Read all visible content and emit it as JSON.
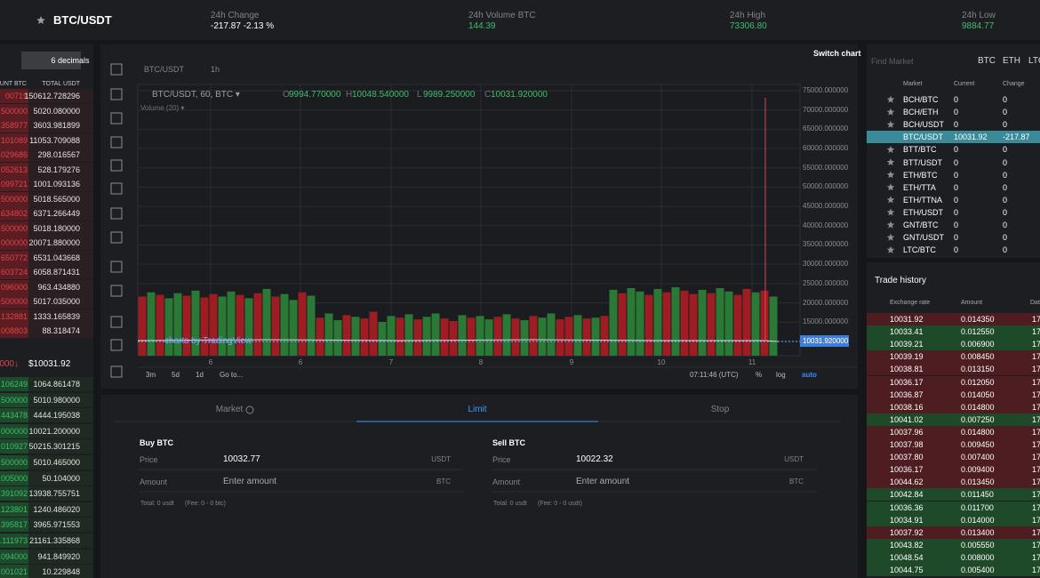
{
  "header": {
    "pair": "BTC/USDT",
    "stats": [
      {
        "label": "24h Change",
        "value": "-217.87 -2.13 %"
      },
      {
        "label": "24h Volume BTC",
        "value": "144.39"
      },
      {
        "label": "24h High",
        "value": "73306.80"
      },
      {
        "label": "24h Low",
        "value": "9884.77"
      }
    ]
  },
  "orderbook": {
    "decimals": "6 decimals",
    "columns": [
      "UNT BTC",
      "TOTAL USDT"
    ],
    "asks": [
      [
        "00719",
        "150612.728296"
      ],
      [
        ".500000",
        "5020.080000"
      ],
      [
        ".358977",
        "3603.981899"
      ],
      [
        ".101089",
        "11053.709088"
      ],
      [
        ".029686",
        "298.016567"
      ],
      [
        ".052613",
        "528.179276"
      ],
      [
        ".099721",
        "1001.093136"
      ],
      [
        ".500000",
        "5018.565000"
      ],
      [
        ".634802",
        "6371.266449"
      ],
      [
        ".500000",
        "5018.180000"
      ],
      [
        "000000",
        "20071.880000"
      ],
      [
        ".650772",
        "6531.043668"
      ],
      [
        ".603724",
        "6058.871431"
      ],
      [
        ".096000",
        "963.434880"
      ],
      [
        ".500000",
        "5017.035000"
      ],
      [
        ".132881",
        "1333.165839"
      ],
      [
        ".008803",
        "88.318474"
      ]
    ],
    "last": {
      "price": "000↓",
      "usd": "$10031.92"
    },
    "bids": [
      [
        ".106249",
        "1064.861478"
      ],
      [
        ".500000",
        "5010.980000"
      ],
      [
        ".443478",
        "4444.195038"
      ],
      [
        "000000",
        "10021.200000"
      ],
      [
        ".010927",
        "50215.301215"
      ],
      [
        ".500000",
        "5010.465000"
      ],
      [
        ".005000",
        "50.104000"
      ],
      [
        ".391092",
        "13938.755751"
      ],
      [
        ".123801",
        "1240.486020"
      ],
      [
        ".395817",
        "3965.971553"
      ],
      [
        ".111973",
        "21161.335868"
      ],
      [
        ".094000",
        "941.849920"
      ],
      [
        ".001021",
        "10.229848"
      ]
    ]
  },
  "chart": {
    "switch": "Switch chart",
    "symbol": "BTC/USDT",
    "interval": "1h",
    "legend": "BTC/USDT, 60, BTC ▾",
    "ohlc": [
      {
        "key": "O",
        "value": "9994.770000"
      },
      {
        "key": "H",
        "value": "10048.540000"
      },
      {
        "key": "L",
        "value": "9989.250000"
      },
      {
        "key": "C",
        "value": "10031.920000"
      }
    ],
    "volume_label": "Volume (20) ▾",
    "watermark": "charts by TradingView",
    "ylim": [
      6300,
      76600
    ],
    "yticks": [
      {
        "value": 75000,
        "label": "75000.000000"
      },
      {
        "value": 70000,
        "label": "70000.000000"
      },
      {
        "value": 65000,
        "label": "65000.000000"
      },
      {
        "value": 60000,
        "label": "60000.000000"
      },
      {
        "value": 55000,
        "label": "55000.000000"
      },
      {
        "value": 50000,
        "label": "50000.000000"
      },
      {
        "value": 45000,
        "label": "45000.000000"
      },
      {
        "value": 40000,
        "label": "40000.000000"
      },
      {
        "value": 35000,
        "label": "35000.000000"
      },
      {
        "value": 30000,
        "label": "30000.000000"
      },
      {
        "value": 25000,
        "label": "25000.000000"
      },
      {
        "value": 20000,
        "label": "20000.000000"
      },
      {
        "value": 15000,
        "label": "15000.000000"
      },
      {
        "value": 10000,
        "label": "10000.000000"
      }
    ],
    "last_label": "10031.920000",
    "dates": [
      "6",
      "6",
      "7",
      "8",
      "9",
      "10",
      "11"
    ],
    "volume": {
      "colors": {
        "up": "#2a7a36",
        "down": "#9e1d22"
      },
      "values": [
        70,
        75,
        72,
        68,
        74,
        71,
        77,
        69,
        73,
        70,
        76,
        72,
        68,
        74,
        79,
        70,
        73,
        66,
        75,
        71,
        45,
        50,
        42,
        48,
        46,
        44,
        52,
        40,
        47,
        45,
        49,
        43,
        46,
        50,
        44,
        41,
        48,
        45,
        47,
        43,
        46,
        49,
        44,
        42,
        47,
        45,
        50,
        43,
        46,
        48,
        44,
        45,
        47,
        78,
        74,
        80,
        76,
        72,
        79,
        75,
        81,
        77,
        73,
        78,
        74,
        80,
        76,
        72,
        79,
        75,
        77,
        70
      ],
      "up": [
        false,
        true,
        false,
        true,
        true,
        false,
        true,
        false,
        false,
        true,
        true,
        false,
        true,
        false,
        true,
        false,
        true,
        true,
        false,
        true,
        false,
        true,
        true,
        false,
        true,
        false,
        false,
        true,
        true,
        false,
        true,
        false,
        true,
        true,
        false,
        false,
        true,
        false,
        true,
        true,
        false,
        true,
        false,
        true,
        false,
        true,
        true,
        false,
        false,
        true,
        false,
        true,
        false,
        true,
        false,
        true,
        true,
        false,
        true,
        false,
        true,
        false,
        false,
        true,
        false,
        true,
        true,
        false,
        false,
        true,
        false,
        true
      ]
    },
    "ranges": [
      "3m",
      "5d",
      "1d",
      "Go to..."
    ],
    "time": "07:11:46 (UTC)",
    "options": [
      "%",
      "log",
      "auto"
    ]
  },
  "order_form": {
    "tabs": [
      "Market",
      "Limit",
      "Stop"
    ],
    "active_tab": 1,
    "panels": [
      {
        "title": "Buy BTC",
        "rows": [
          {
            "label": "Price",
            "value": "10032.77",
            "unit": "USDT"
          },
          {
            "label": "Amount",
            "value": "Enter amount",
            "unit": "BTC"
          }
        ],
        "total": "Total: 0 usdt",
        "fee": "(Fee: 0 - 0 btc)"
      },
      {
        "title": "Sell BTC",
        "rows": [
          {
            "label": "Price",
            "value": "10022.32",
            "unit": "USDT"
          },
          {
            "label": "Amount",
            "value": "Enter amount",
            "unit": "BTC"
          }
        ],
        "total": "Total: 0 usdt",
        "fee": "(Fee: 0 - 0 usdt)"
      }
    ]
  },
  "markets": {
    "search": "Find Market",
    "filters": [
      "BTC",
      "ETH",
      "LTC"
    ],
    "columns": [
      "Market",
      "Current",
      "Change"
    ],
    "rows": [
      [
        "BCH/BTC",
        "0",
        "0"
      ],
      [
        "BCH/ETH",
        "0",
        "0"
      ],
      [
        "BCH/USDT",
        "0",
        "0"
      ],
      [
        "BTC/USDT",
        "10031.92",
        "-217.87"
      ],
      [
        "BTT/BTC",
        "0",
        "0"
      ],
      [
        "BTT/USDT",
        "0",
        "0"
      ],
      [
        "ETH/BTC",
        "0",
        "0"
      ],
      [
        "ETH/TTA",
        "0",
        "0"
      ],
      [
        "ETH/TTNA",
        "0",
        "0"
      ],
      [
        "ETH/USDT",
        "0",
        "0"
      ],
      [
        "GNT/BTC",
        "0",
        "0"
      ],
      [
        "GNT/USDT",
        "0",
        "0"
      ],
      [
        "LTC/BTC",
        "0",
        "0"
      ]
    ],
    "selected": 3
  },
  "trade_history": {
    "title": "Trade history",
    "columns": [
      "Exchange rate",
      "Amount",
      "Dat"
    ],
    "rows": [
      {
        "rate": "10031.92",
        "amount": "0.014350",
        "date": "17",
        "side": "sell"
      },
      {
        "rate": "10033.41",
        "amount": "0.012550",
        "date": "17",
        "side": "buy"
      },
      {
        "rate": "10039.21",
        "amount": "0.006900",
        "date": "17",
        "side": "buy"
      },
      {
        "rate": "10039.19",
        "amount": "0.008450",
        "date": "17",
        "side": "sell"
      },
      {
        "rate": "10038.81",
        "amount": "0.013150",
        "date": "17",
        "side": "sell"
      },
      {
        "rate": "10036.17",
        "amount": "0.012050",
        "date": "17",
        "side": "sell"
      },
      {
        "rate": "10036.87",
        "amount": "0.014050",
        "date": "17",
        "side": "sell"
      },
      {
        "rate": "10038.16",
        "amount": "0.014800",
        "date": "17",
        "side": "sell"
      },
      {
        "rate": "10041.02",
        "amount": "0.007250",
        "date": "17",
        "side": "buy"
      },
      {
        "rate": "10037.96",
        "amount": "0.014800",
        "date": "17",
        "side": "sell"
      },
      {
        "rate": "10037.98",
        "amount": "0.009450",
        "date": "17",
        "side": "sell"
      },
      {
        "rate": "10037.80",
        "amount": "0.007400",
        "date": "17",
        "side": "sell"
      },
      {
        "rate": "10036.17",
        "amount": "0.009400",
        "date": "17",
        "side": "sell"
      },
      {
        "rate": "10044.62",
        "amount": "0.013450",
        "date": "17",
        "side": "sell"
      },
      {
        "rate": "10042.84",
        "amount": "0.011450",
        "date": "17",
        "side": "buy"
      },
      {
        "rate": "10036.36",
        "amount": "0.011700",
        "date": "17",
        "side": "buy"
      },
      {
        "rate": "10034.91",
        "amount": "0.014000",
        "date": "17",
        "side": "buy"
      },
      {
        "rate": "10037.92",
        "amount": "0.013400",
        "date": "17",
        "side": "sell"
      },
      {
        "rate": "10043.82",
        "amount": "0.005550",
        "date": "17",
        "side": "buy"
      },
      {
        "rate": "10048.54",
        "amount": "0.008000",
        "date": "17",
        "side": "buy"
      },
      {
        "rate": "10044.75",
        "amount": "0.005400",
        "date": "17",
        "side": "buy"
      }
    ]
  }
}
